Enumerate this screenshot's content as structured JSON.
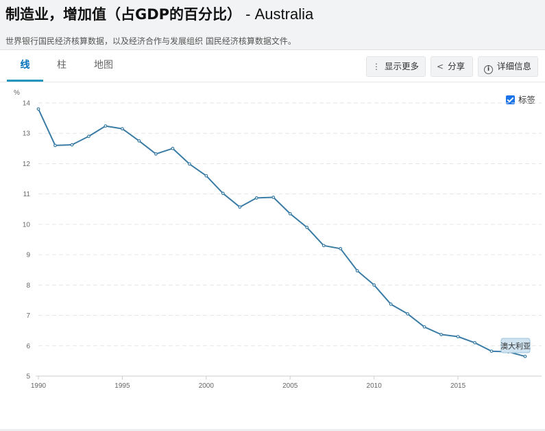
{
  "header": {
    "title_bold": "制造业，增加值（占GDP的百分比）",
    "title_light": " - Australia",
    "subtitle": "世界银行国民经济核算数据，以及经济合作与发展组织 国民经济核算数据文件。"
  },
  "tabs": [
    {
      "label": "线",
      "active": true
    },
    {
      "label": "柱",
      "active": false
    },
    {
      "label": "地图",
      "active": false
    }
  ],
  "toolbar": {
    "more_label": "显示更多",
    "share_label": "分享",
    "details_label": "详细信息"
  },
  "label_toggle": {
    "label": "标签",
    "checked": true
  },
  "colors": {
    "series": "#3a7ca5",
    "accent": "#2596be",
    "checkbox": "#1a73e8"
  },
  "chart_data": {
    "type": "line",
    "title": "",
    "xlabel": "",
    "ylabel": "%",
    "xlim": [
      1990,
      2019
    ],
    "ylim": [
      5,
      14
    ],
    "x_ticks": [
      "1990",
      "1995",
      "2000",
      "2005",
      "2010",
      "2015"
    ],
    "y_ticks": [
      "5",
      "6",
      "7",
      "8",
      "9",
      "10",
      "11",
      "12",
      "13",
      "14"
    ],
    "grid": "horizontal-dashed",
    "series": [
      {
        "name": "澳大利亚",
        "x": [
          1990,
          1991,
          1992,
          1993,
          1994,
          1995,
          1996,
          1997,
          1998,
          1999,
          2000,
          2001,
          2002,
          2003,
          2004,
          2005,
          2006,
          2007,
          2008,
          2009,
          2010,
          2011,
          2012,
          2013,
          2014,
          2015,
          2016,
          2017,
          2018,
          2019
        ],
        "values": [
          13.8,
          12.6,
          12.62,
          12.9,
          13.24,
          13.15,
          12.75,
          12.32,
          12.5,
          11.99,
          11.6,
          11.02,
          10.57,
          10.87,
          10.89,
          10.35,
          9.9,
          9.3,
          9.2,
          8.47,
          8.0,
          7.37,
          7.05,
          6.62,
          6.37,
          6.3,
          6.1,
          5.82,
          5.8,
          5.65
        ]
      }
    ]
  }
}
